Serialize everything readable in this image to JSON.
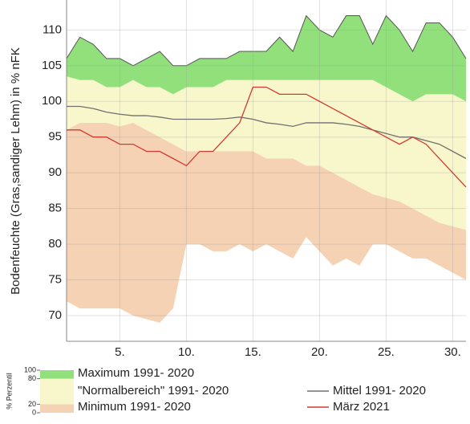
{
  "chart_data": {
    "type": "area",
    "y_label": "Bodenfeuchte (Gras,sandiger Lehm) in % nFK",
    "x": [
      1,
      2,
      3,
      4,
      5,
      6,
      7,
      8,
      9,
      10,
      11,
      12,
      13,
      14,
      15,
      16,
      17,
      18,
      19,
      20,
      21,
      22,
      23,
      24,
      25,
      26,
      27,
      28,
      29,
      30,
      31
    ],
    "xlim": [
      1,
      31
    ],
    "xticks": [
      {
        "value": 5,
        "label": "5."
      },
      {
        "value": 10,
        "label": "10."
      },
      {
        "value": 15,
        "label": "15."
      },
      {
        "value": 20,
        "label": "20."
      },
      {
        "value": 25,
        "label": "25."
      },
      {
        "value": 30,
        "label": "30."
      }
    ],
    "ylim": [
      66.4,
      114.2
    ],
    "yticks": [
      70,
      75,
      80,
      85,
      90,
      95,
      100,
      105,
      110
    ],
    "grid": true,
    "series": [
      {
        "name": "Minimum 1991- 2020",
        "style": "band",
        "color": "#f6d2b4",
        "lower": [
          72,
          71,
          71,
          71,
          71,
          70,
          69.5,
          69,
          71,
          80,
          80,
          79,
          79,
          80,
          79,
          80,
          79,
          78,
          81,
          79,
          77,
          78,
          77,
          80,
          80,
          79,
          78,
          78,
          77,
          76,
          75
        ],
        "values": [
          96,
          97,
          97,
          97,
          96.5,
          97,
          96,
          95,
          94,
          93,
          93,
          93,
          93,
          93,
          93,
          92,
          92,
          92,
          91,
          91,
          90,
          89,
          88,
          87,
          86.5,
          86,
          85,
          84,
          83,
          82.5,
          82
        ]
      },
      {
        "name": "\"Normalbereich\" 1991- 2020",
        "style": "band",
        "color": "#f8f7cc",
        "values": [
          103.5,
          103,
          103,
          102,
          102,
          103,
          102,
          102,
          101,
          102,
          102,
          102,
          103,
          103,
          103,
          103,
          103,
          103,
          103,
          103,
          103,
          103,
          103,
          103,
          102,
          101,
          100,
          101,
          101,
          101,
          100
        ]
      },
      {
        "name": "Maximum 1991- 2020",
        "style": "band",
        "color": "#92e07c",
        "edge": "#555555",
        "values": [
          106,
          109,
          108,
          106,
          106,
          105,
          106,
          107,
          105,
          105,
          106,
          106,
          106,
          107,
          107,
          107,
          109,
          107,
          112,
          110,
          109,
          112,
          112,
          108,
          112,
          110,
          107,
          111,
          111,
          109,
          106
        ]
      },
      {
        "name": "Mittel 1991- 2020",
        "style": "line",
        "color": "#707070",
        "values": [
          99.3,
          99.3,
          99,
          98.5,
          98.2,
          98,
          98,
          97.8,
          97.5,
          97.5,
          97.5,
          97.5,
          97.6,
          97.8,
          97.5,
          97,
          96.8,
          96.5,
          97,
          97,
          97,
          96.8,
          96.5,
          96,
          95.5,
          95,
          95,
          94.5,
          94,
          93,
          92
        ]
      },
      {
        "name": "März 2021",
        "style": "line",
        "color": "#d23a32",
        "values": [
          96,
          96,
          95,
          95,
          94,
          94,
          93,
          93,
          92,
          91,
          93,
          93,
          95,
          97,
          102,
          102,
          101,
          101,
          101,
          100,
          99,
          98,
          97,
          96,
          95,
          94,
          95,
          94,
          92,
          90,
          88
        ]
      }
    ],
    "legend_scale": {
      "label": "% Perzentil",
      "ticks": [
        100,
        80,
        20,
        0
      ]
    }
  }
}
